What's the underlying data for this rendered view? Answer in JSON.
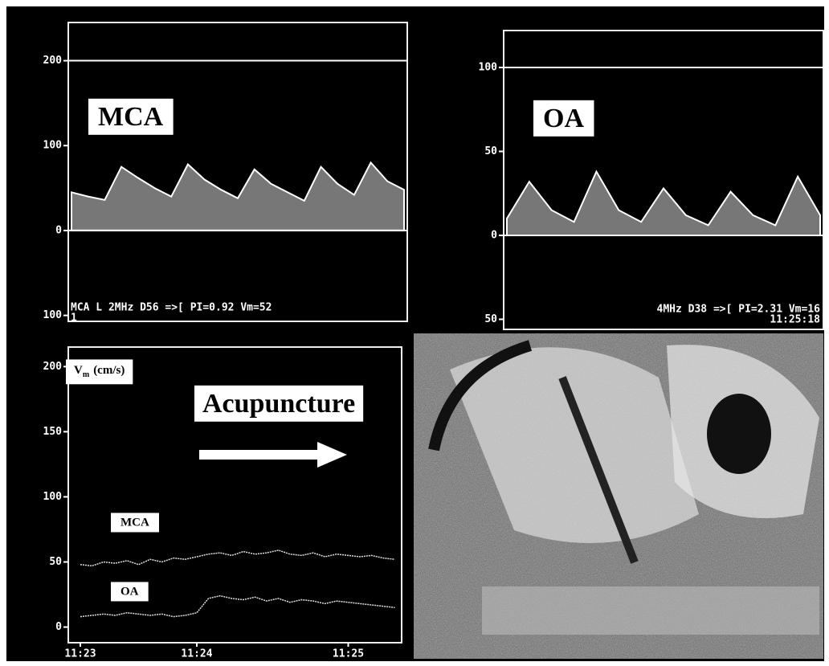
{
  "chart_data": [
    {
      "type": "area",
      "title": "MCA",
      "categories": [
        null,
        null,
        null,
        null,
        null,
        null,
        null,
        null,
        null,
        null,
        null,
        null,
        null,
        null,
        null,
        null,
        null,
        null,
        null,
        null,
        null
      ],
      "values": [
        45,
        40,
        36,
        75,
        62,
        50,
        40,
        78,
        60,
        48,
        38,
        72,
        55,
        45,
        35,
        75,
        55,
        42,
        80,
        58,
        48
      ],
      "color": "#d8d8d8",
      "ylim": [
        -107,
        245
      ],
      "yticks": [
        200,
        100,
        0,
        {
          "value": -100,
          "label": "100"
        }
      ],
      "annotations": [
        "MCA L 2MHz D56 =>[ PI=0.92 Vm=52",
        "1"
      ]
    },
    {
      "type": "area",
      "title": "OA",
      "categories": [
        null,
        null,
        null,
        null,
        null,
        null,
        null,
        null,
        null,
        null,
        null,
        null,
        null,
        null,
        null
      ],
      "values": [
        10,
        32,
        15,
        8,
        38,
        15,
        8,
        28,
        12,
        6,
        26,
        12,
        6,
        35,
        12
      ],
      "color": "#d8d8d8",
      "ylim": [
        -56,
        122
      ],
      "yticks": [
        100,
        50,
        0,
        {
          "value": -50,
          "label": "50"
        }
      ],
      "annotations": [
        "4MHz D38 =>[ PI=2.31 Vm=16",
        "11:25:18"
      ]
    },
    {
      "type": "line",
      "y_label": {
        "symbol": "V",
        "subscript": "m",
        "unit": "(cm/s)"
      },
      "annotations": [
        "Acupuncture"
      ],
      "categories": [
        "11:23",
        null,
        null,
        null,
        null,
        null,
        null,
        null,
        null,
        null,
        "11:24",
        null,
        null,
        null,
        null,
        null,
        null,
        null,
        null,
        null,
        null,
        null,
        null,
        "11:25",
        null,
        null,
        null,
        null
      ],
      "series": [
        {
          "name": "MCA",
          "color": "#e0e0e0",
          "values": [
            48,
            47,
            50,
            49,
            51,
            48,
            52,
            50,
            53,
            52,
            54,
            56,
            57,
            55,
            58,
            56,
            57,
            59,
            56,
            55,
            57,
            54,
            56,
            55,
            54,
            55,
            53,
            52
          ]
        },
        {
          "name": "OA",
          "color": "#e0e0e0",
          "values": [
            8,
            9,
            10,
            9,
            11,
            10,
            9,
            10,
            8,
            9,
            11,
            22,
            24,
            22,
            21,
            23,
            20,
            22,
            19,
            21,
            20,
            18,
            20,
            19,
            18,
            17,
            16,
            15
          ]
        }
      ],
      "ylim": [
        -12,
        215
      ],
      "yticks": [
        200,
        150,
        100,
        50,
        0
      ]
    }
  ]
}
